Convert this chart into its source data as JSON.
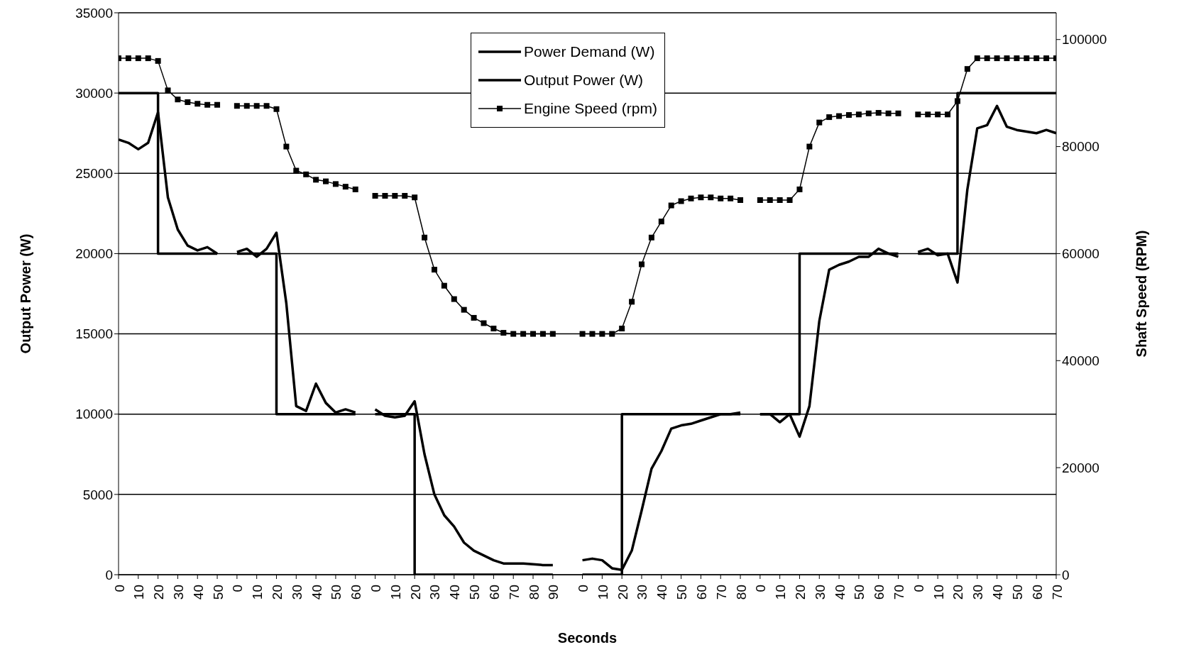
{
  "chart_data": {
    "type": "line",
    "xlabel": "Seconds",
    "ylabel": "Output Power (W)",
    "y2label": "Shaft Speed (RPM)",
    "categories": [
      "0",
      null,
      "10",
      null,
      "20",
      null,
      "30",
      null,
      "40",
      null,
      "50",
      null,
      "0",
      null,
      "10",
      null,
      "20",
      null,
      "30",
      null,
      "40",
      null,
      "50",
      null,
      "60",
      null,
      "0",
      null,
      "10",
      null,
      "20",
      null,
      "30",
      null,
      "40",
      null,
      "50",
      null,
      "60",
      null,
      "70",
      null,
      "80",
      null,
      "90",
      null,
      null,
      "0",
      null,
      "10",
      null,
      "20",
      null,
      "30",
      null,
      "40",
      null,
      "50",
      null,
      "60",
      null,
      "70",
      null,
      "80",
      null,
      "0",
      null,
      "10",
      null,
      "20",
      null,
      "30",
      null,
      "40",
      null,
      "50",
      null,
      "60",
      null,
      "70",
      null,
      "0",
      null,
      "10",
      null,
      "20",
      null,
      "30",
      null,
      "40",
      null,
      "50",
      null,
      "60",
      null,
      "70"
    ],
    "series": [
      {
        "name": "Power Demand (W)",
        "type": "step",
        "color": "#000000",
        "marker": "none",
        "values": [
          30000,
          30000,
          30000,
          30000,
          20000,
          20000,
          20000,
          20000,
          20000,
          20000,
          20000,
          null,
          20000,
          20000,
          20000,
          20000,
          10000,
          10000,
          10000,
          10000,
          10000,
          10000,
          10000,
          10000,
          10000,
          null,
          10000,
          10000,
          10000,
          10000,
          0,
          0,
          0,
          0,
          0,
          0,
          0,
          0,
          0,
          0,
          0,
          0,
          0,
          0,
          0,
          null,
          null,
          0,
          0,
          0,
          0,
          10000,
          10000,
          10000,
          10000,
          10000,
          10000,
          10000,
          10000,
          10000,
          10000,
          10000,
          10000,
          10000,
          null,
          10000,
          10000,
          10000,
          10000,
          20000,
          20000,
          20000,
          20000,
          20000,
          20000,
          20000,
          20000,
          20000,
          20000,
          20000,
          null,
          20000,
          20000,
          20000,
          20000,
          30000,
          30000,
          30000,
          30000,
          30000,
          30000,
          30000,
          30000,
          30000,
          30000,
          30000
        ]
      },
      {
        "name": "Output Power (W)",
        "type": "line",
        "color": "#000000",
        "marker": "none",
        "values": [
          27100,
          26900,
          26500,
          26900,
          28800,
          23500,
          21500,
          20500,
          20200,
          20400,
          20000,
          null,
          20100,
          20300,
          19800,
          20300,
          21300,
          16900,
          10500,
          10200,
          11900,
          10700,
          10100,
          10300,
          10100,
          null,
          10300,
          9900,
          9800,
          9900,
          10800,
          7500,
          5000,
          3700,
          3000,
          2000,
          1500,
          1200,
          900,
          700,
          700,
          700,
          650,
          600,
          600,
          null,
          null,
          900,
          1000,
          900,
          400,
          300,
          1500,
          4000,
          6600,
          7700,
          9100,
          9300,
          9400,
          9600,
          9800,
          10000,
          10000,
          10100,
          null,
          10000,
          10000,
          9500,
          10000,
          8600,
          10500,
          15800,
          19000,
          19300,
          19500,
          19800,
          19800,
          20300,
          20000,
          19800,
          null,
          20100,
          20300,
          19900,
          20000,
          18200,
          24000,
          27800,
          28000,
          29200,
          27900,
          27700,
          27600,
          27500,
          27700,
          27500
        ]
      },
      {
        "name": "Engine Speed (rpm)",
        "type": "line",
        "axis": "y2",
        "color": "#000000",
        "marker": "square",
        "values": [
          96500,
          96500,
          96500,
          96500,
          96000,
          90500,
          88800,
          88300,
          88000,
          87800,
          87800,
          null,
          87600,
          87600,
          87600,
          87600,
          87000,
          80000,
          75500,
          74800,
          73800,
          73500,
          73000,
          72500,
          72000,
          null,
          70800,
          70800,
          70800,
          70800,
          70500,
          63000,
          57000,
          54000,
          51500,
          49500,
          48000,
          47000,
          46000,
          45200,
          45000,
          45000,
          45000,
          45000,
          45000,
          null,
          null,
          45000,
          45000,
          45000,
          45000,
          46000,
          51000,
          58000,
          63000,
          66000,
          69000,
          69800,
          70300,
          70500,
          70500,
          70300,
          70300,
          70000,
          null,
          70000,
          70000,
          70000,
          70000,
          72000,
          80000,
          84500,
          85500,
          85700,
          85900,
          86000,
          86200,
          86300,
          86200,
          86200,
          null,
          86000,
          86000,
          86000,
          86000,
          88500,
          94500,
          96500,
          96500,
          96500,
          96500,
          96500,
          96500,
          96500,
          96500,
          96500
        ]
      }
    ],
    "ylim": [
      0,
      35000
    ],
    "yticks": [
      0,
      5000,
      10000,
      15000,
      20000,
      25000,
      30000,
      35000
    ],
    "y2lim": [
      0,
      105000
    ],
    "y2ticks": [
      0,
      20000,
      40000,
      60000,
      80000,
      100000
    ],
    "grid": "y",
    "legend": "top"
  }
}
